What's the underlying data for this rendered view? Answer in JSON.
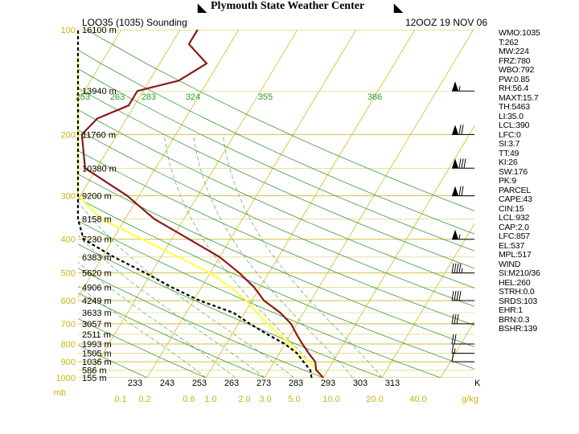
{
  "header": {
    "title": "Plymouth State Weather Center",
    "station": "LOO35 (1035) Sounding",
    "time": "12OOZ 19 NOV 06"
  },
  "colors": {
    "grid": "#d2c23c",
    "dry_adiabat": "#3a9a3a",
    "moist_adiabat": "#3a9a3a",
    "temperature": "#8b1a1a",
    "dewpoint": "#000000",
    "parcel": "#ffff44",
    "label_green": "#2e9b2e",
    "label_yellow": "#c8b414"
  },
  "chart_data": {
    "type": "line",
    "title": "Plymouth State Weather Center",
    "pressure_axis": {
      "unit": "mb",
      "ticks": [
        100,
        200,
        300,
        400,
        500,
        600,
        700,
        800,
        900,
        1000
      ],
      "ylim": [
        1000,
        100
      ]
    },
    "temperature_axis": {
      "unit": "K",
      "ticks": [
        "233",
        "243",
        "253",
        "263",
        "273",
        "283",
        "293",
        "303",
        "313"
      ]
    },
    "mixing_ratio_axis": {
      "unit": "g/kg",
      "ticks": [
        "0.1",
        "0.2",
        "0.6",
        "1.0",
        "2.0",
        "3.0",
        "5.0",
        "10.0",
        "20.0",
        "40.0"
      ]
    },
    "theta_labels": [
      "253",
      "263",
      "283",
      "324",
      "355",
      "386"
    ],
    "height_labels": [
      {
        "p": 100,
        "label": "16100 m"
      },
      {
        "p": 150,
        "label": "13940 m"
      },
      {
        "p": 200,
        "label": "11760 m"
      },
      {
        "p": 250,
        "label": "10380 m"
      },
      {
        "p": 300,
        "label": "9200 m"
      },
      {
        "p": 350,
        "label": "8158 m"
      },
      {
        "p": 400,
        "label": "7230 m"
      },
      {
        "p": 450,
        "label": "6383 m"
      },
      {
        "p": 500,
        "label": "5620 m"
      },
      {
        "p": 550,
        "label": "4906 m"
      },
      {
        "p": 600,
        "label": "4249 m"
      },
      {
        "p": 650,
        "label": "3633 m"
      },
      {
        "p": 700,
        "label": "3057 m"
      },
      {
        "p": 750,
        "label": "2511 m"
      },
      {
        "p": 800,
        "label": "1993 m"
      },
      {
        "p": 850,
        "label": "1505 m"
      },
      {
        "p": 900,
        "label": "1036 m"
      },
      {
        "p": 950,
        "label": "586 m"
      },
      {
        "p": 1000,
        "label": "155 m"
      }
    ],
    "series": [
      {
        "name": "temperature",
        "points": [
          {
            "p": 1000,
            "t": 283
          },
          {
            "p": 950,
            "t": 281
          },
          {
            "p": 900,
            "t": 280
          },
          {
            "p": 850,
            "t": 278
          },
          {
            "p": 800,
            "t": 276
          },
          {
            "p": 750,
            "t": 274
          },
          {
            "p": 700,
            "t": 272
          },
          {
            "p": 650,
            "t": 269
          },
          {
            "p": 600,
            "t": 265
          },
          {
            "p": 550,
            "t": 262
          },
          {
            "p": 500,
            "t": 258
          },
          {
            "p": 450,
            "t": 253
          },
          {
            "p": 400,
            "t": 246
          },
          {
            "p": 350,
            "t": 238
          },
          {
            "p": 300,
            "t": 231
          },
          {
            "p": 250,
            "t": 221
          },
          {
            "p": 200,
            "t": 217
          },
          {
            "p": 180,
            "t": 218
          },
          {
            "p": 165,
            "t": 222
          },
          {
            "p": 150,
            "t": 222
          },
          {
            "p": 140,
            "t": 228
          },
          {
            "p": 125,
            "t": 231
          },
          {
            "p": 110,
            "t": 226
          },
          {
            "p": 100,
            "t": 226
          }
        ]
      },
      {
        "name": "dewpoint",
        "points": [
          {
            "p": 1000,
            "t": 281
          },
          {
            "p": 950,
            "t": 280
          },
          {
            "p": 900,
            "t": 278
          },
          {
            "p": 850,
            "t": 276
          },
          {
            "p": 800,
            "t": 273
          },
          {
            "p": 750,
            "t": 269
          },
          {
            "p": 700,
            "t": 265
          },
          {
            "p": 650,
            "t": 261
          },
          {
            "p": 600,
            "t": 254
          },
          {
            "p": 550,
            "t": 248
          },
          {
            "p": 500,
            "t": 242
          },
          {
            "p": 450,
            "t": 235
          },
          {
            "p": 400,
            "t": 228
          },
          {
            "p": 350,
            "t": 217
          },
          {
            "p": 300,
            "t": 211
          },
          {
            "p": 250,
            "t": 204
          },
          {
            "p": 200,
            "t": 198
          },
          {
            "p": 170,
            "t": 196
          },
          {
            "p": 150,
            "t": 193
          },
          {
            "p": 130,
            "t": 191
          },
          {
            "p": 110,
            "t": 191
          },
          {
            "p": 100,
            "t": 190
          }
        ]
      },
      {
        "name": "parcel",
        "points": [
          {
            "p": 1000,
            "t": 283
          },
          {
            "p": 950,
            "t": 281
          },
          {
            "p": 900,
            "t": 279
          },
          {
            "p": 850,
            "t": 276
          },
          {
            "p": 800,
            "t": 274
          },
          {
            "p": 750,
            "t": 271
          },
          {
            "p": 700,
            "t": 268
          },
          {
            "p": 650,
            "t": 265
          },
          {
            "p": 600,
            "t": 262
          },
          {
            "p": 550,
            "t": 258
          },
          {
            "p": 500,
            "t": 253
          },
          {
            "p": 450,
            "t": 246
          },
          {
            "p": 400,
            "t": 238
          },
          {
            "p": 350,
            "t": 229
          },
          {
            "p": 300,
            "t": 219
          },
          {
            "p": 250,
            "t": 207
          },
          {
            "p": 200,
            "t": 193
          },
          {
            "p": 150,
            "t": 178
          },
          {
            "p": 120,
            "t": 167
          }
        ]
      }
    ],
    "wind_barbs": [
      {
        "p": 150,
        "dir": 270,
        "kt": 55
      },
      {
        "p": 200,
        "dir": 270,
        "kt": 70
      },
      {
        "p": 250,
        "dir": 270,
        "kt": 80
      },
      {
        "p": 300,
        "dir": 270,
        "kt": 70
      },
      {
        "p": 400,
        "dir": 270,
        "kt": 55
      },
      {
        "p": 500,
        "dir": 270,
        "kt": 45
      },
      {
        "p": 600,
        "dir": 270,
        "kt": 40
      },
      {
        "p": 700,
        "dir": 260,
        "kt": 30
      },
      {
        "p": 800,
        "dir": 240,
        "kt": 20
      },
      {
        "p": 850,
        "dir": 230,
        "kt": 15
      },
      {
        "p": 900,
        "dir": 220,
        "kt": 10
      }
    ]
  },
  "indices": [
    "WMO:1035",
    "T:262",
    "MW:224",
    "FRZ:780",
    "WBO:792",
    "PW:0.85",
    "RH:56.4",
    "MAXT:15.7",
    "TH:5463",
    "LI:35.0",
    "LCL:390",
    "LFC:0",
    "SI:3.7",
    "TT:49",
    "KI:26",
    "SW:176",
    "PK:9",
    "PARCEL",
    "CAPE:43",
    "CIN:15",
    "LCL:932",
    "CAP:2.0",
    "LFC:857",
    "EL:537",
    "MPL:517",
    "WIND",
    "SI:M210/36",
    "HEL:260",
    "STRH:0.0",
    "SRDS:103",
    "EHR:1",
    "BRN:0.3",
    "BSHR:139"
  ]
}
